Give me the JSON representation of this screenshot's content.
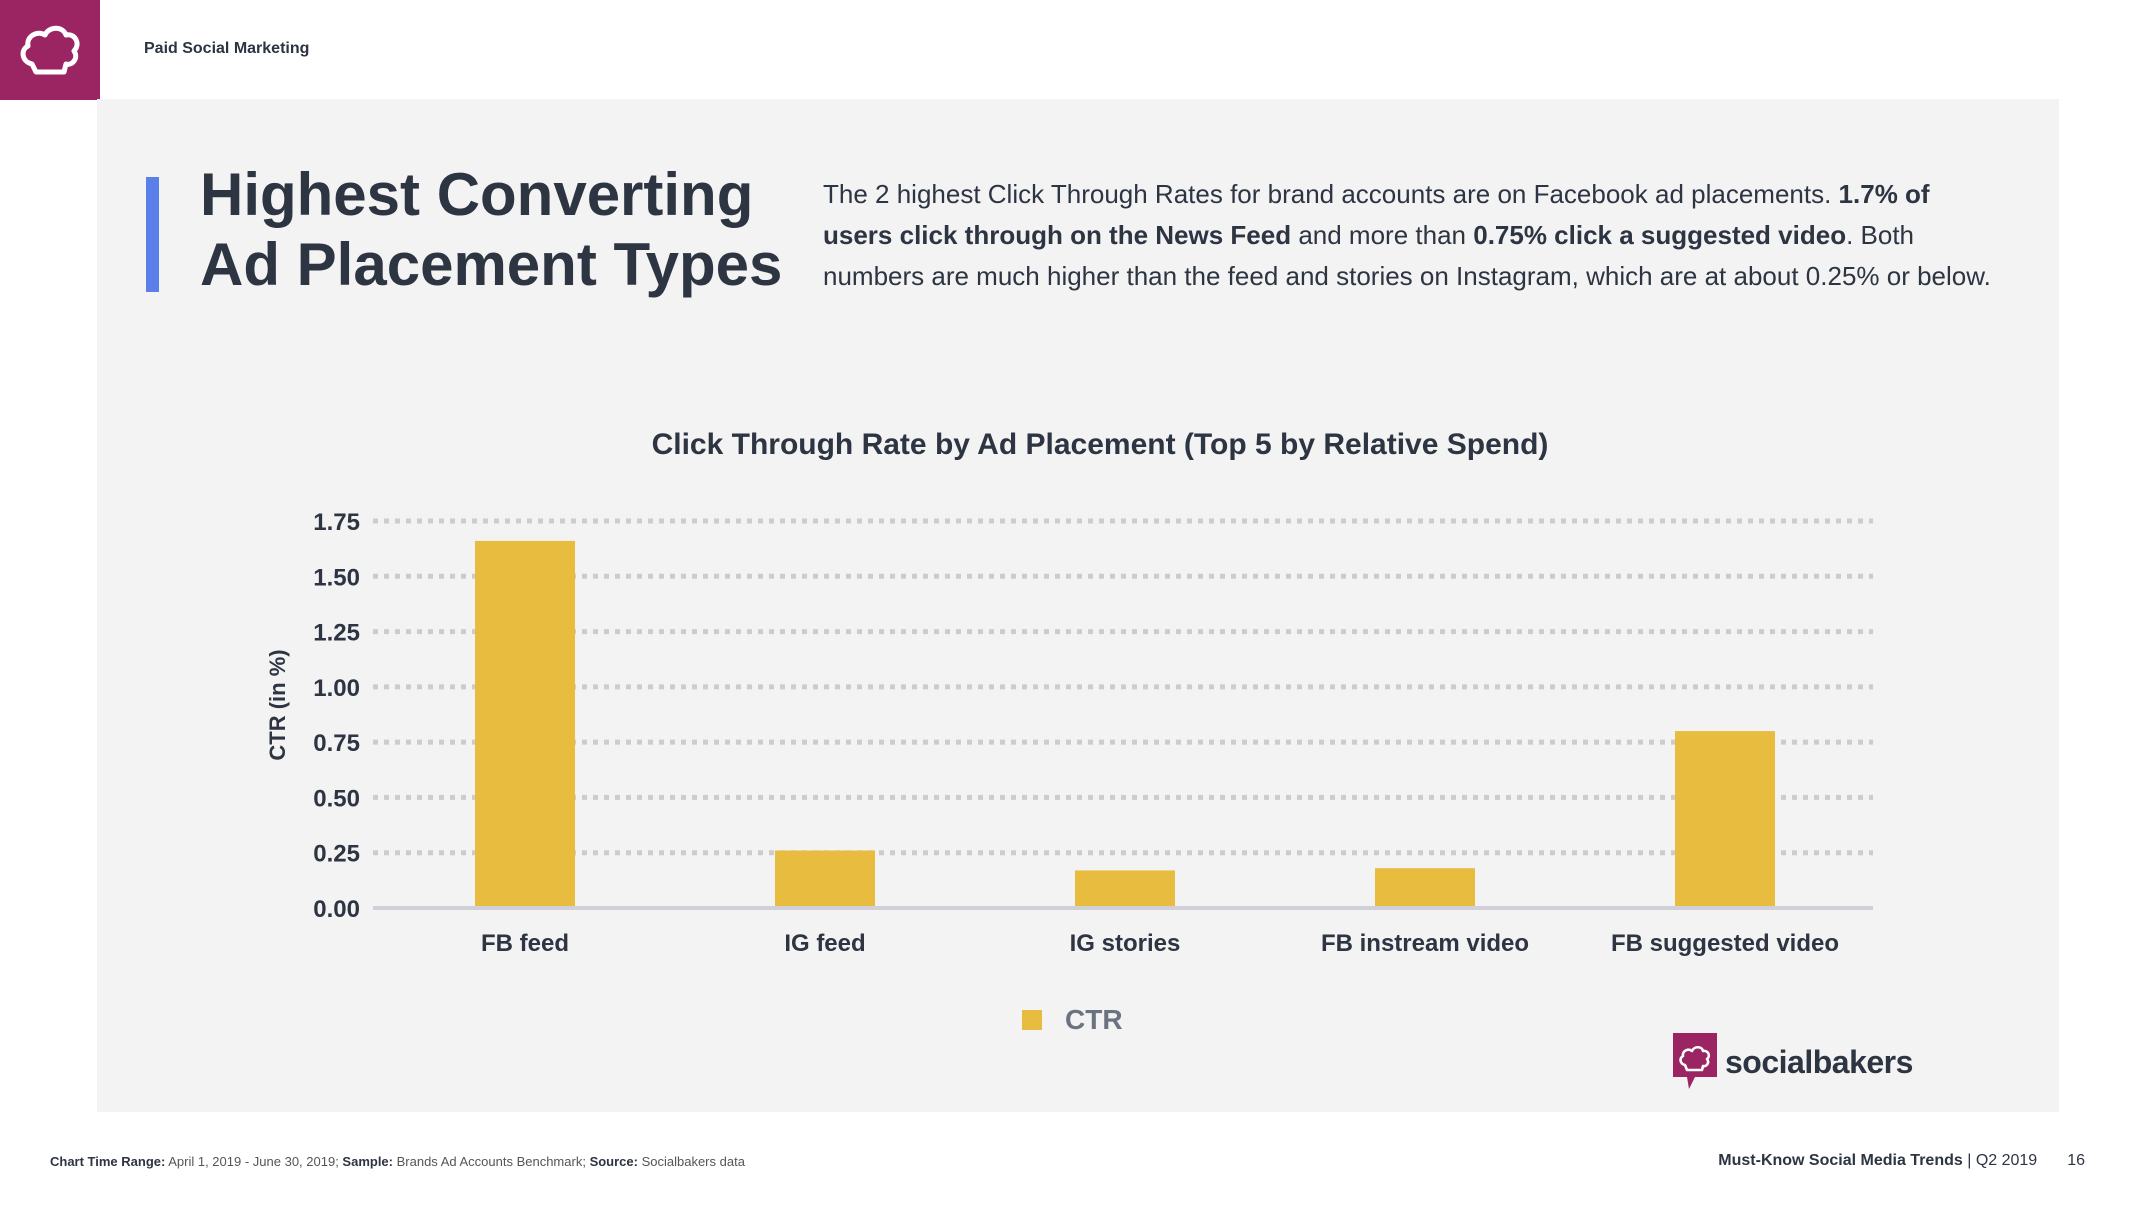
{
  "header": {
    "section": "Paid Social Marketing"
  },
  "title": {
    "line1": "Highest Converting",
    "line2": "Ad Placement Types"
  },
  "intro": {
    "p1": "The 2 highest Click Through Rates for brand accounts are on Facebook ad placements. ",
    "b1": "1.7% of users click through on the News Feed",
    "p2": " and more than ",
    "b2": "0.75% click a suggested video",
    "p3": ". Both numbers are much higher than the feed and stories on Instagram, which are at about 0.25% or below."
  },
  "chart_data": {
    "type": "bar",
    "title": "Click Through Rate by Ad Placement (Top 5 by Relative Spend)",
    "xlabel": "",
    "ylabel": "CTR (in %)",
    "categories": [
      "FB feed",
      "IG feed",
      "IG stories",
      "FB instream video",
      "FB suggested video"
    ],
    "series": [
      {
        "name": "CTR",
        "values": [
          1.66,
          0.26,
          0.17,
          0.18,
          0.8
        ]
      }
    ],
    "ylim": [
      0,
      1.75
    ],
    "yticks": [
      "0.00",
      "0.25",
      "0.50",
      "0.75",
      "1.00",
      "1.25",
      "1.50",
      "1.75"
    ],
    "grid": true,
    "legend": "bottom-center",
    "colors": {
      "bar": "#e8bd3f",
      "grid": "#cccccc",
      "axis": "#d0d0d8",
      "legend_text": "#6b7280"
    }
  },
  "brand": {
    "name": "socialbakers"
  },
  "footer": {
    "range_label": "Chart Time Range:",
    "range_value": " April 1, 2019 - June 30, 2019; ",
    "sample_label": "Sample:",
    "sample_value": " Brands Ad Accounts Benchmark; ",
    "source_label": "Source:",
    "source_value": " Socialbakers data",
    "report": "Must-Know Social Media Trends",
    "period": " | Q2 2019",
    "page": "16"
  },
  "colors": {
    "brand": "#9b2563",
    "accent": "#5b7fe8",
    "panel": "#f3f3f3"
  }
}
